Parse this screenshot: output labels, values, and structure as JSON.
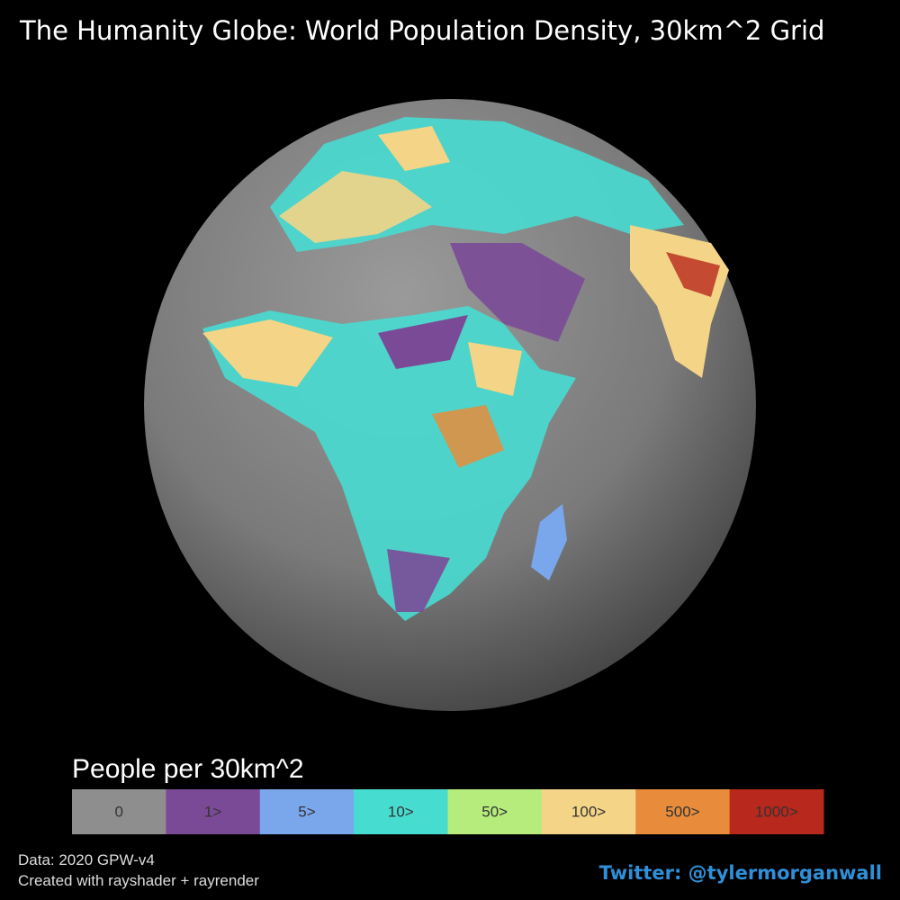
{
  "title": "The Humanity Globe: World Population Density, 30km^2 Grid",
  "legend": {
    "title": "People per 30km^2",
    "items": [
      {
        "label": "0",
        "color": "#8e8e8e"
      },
      {
        "label": "1>",
        "color": "#7b4a97"
      },
      {
        "label": "5>",
        "color": "#7aa6ec"
      },
      {
        "label": "10>",
        "color": "#47dcd0"
      },
      {
        "label": "50>",
        "color": "#b6ec7c"
      },
      {
        "label": "100>",
        "color": "#f4d486"
      },
      {
        "label": "500>",
        "color": "#e88c3c"
      },
      {
        "label": "1000>",
        "color": "#b8281c"
      }
    ]
  },
  "credits": {
    "data": "Data: 2020 GPW-v4",
    "tool": "Created with rayshader + rayrender"
  },
  "twitter": "Twitter: @tylermorganwall"
}
